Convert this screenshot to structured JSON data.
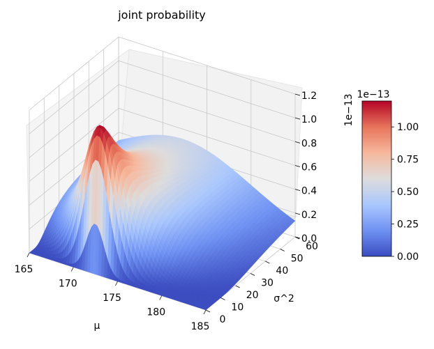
{
  "chart_data": {
    "type": "surface3d",
    "title": "joint probability",
    "xlabel": "μ",
    "ylabel": "σ^2",
    "zlabel": "",
    "x_range": [
      165,
      185
    ],
    "y_range": [
      0,
      60
    ],
    "z_range": [
      0,
      1.2
    ],
    "x_ticks": [
      "165",
      "170",
      "175",
      "180",
      "185"
    ],
    "y_ticks": [
      "0",
      "10",
      "20",
      "30",
      "40",
      "50",
      "60"
    ],
    "z_ticks": [
      "0.0",
      "0.2",
      "0.4",
      "0.6",
      "0.8",
      "1.0",
      "1.2"
    ],
    "z_offset_label": "1e−13",
    "peak": {
      "mu": 172.3,
      "sigma2": 9.5,
      "value": 1.2
    },
    "colormap": "coolwarm",
    "colorbar": {
      "offset_label": "1e−13",
      "range": [
        0,
        1.2
      ],
      "ticks": [
        "0.00",
        "0.25",
        "0.50",
        "0.75",
        "1.00"
      ],
      "stops": [
        "#3b4cc0",
        "#6f92f3",
        "#aac7fd",
        "#dddcdc",
        "#f7b89c",
        "#e7745b",
        "#b40426"
      ]
    },
    "grid": true
  }
}
